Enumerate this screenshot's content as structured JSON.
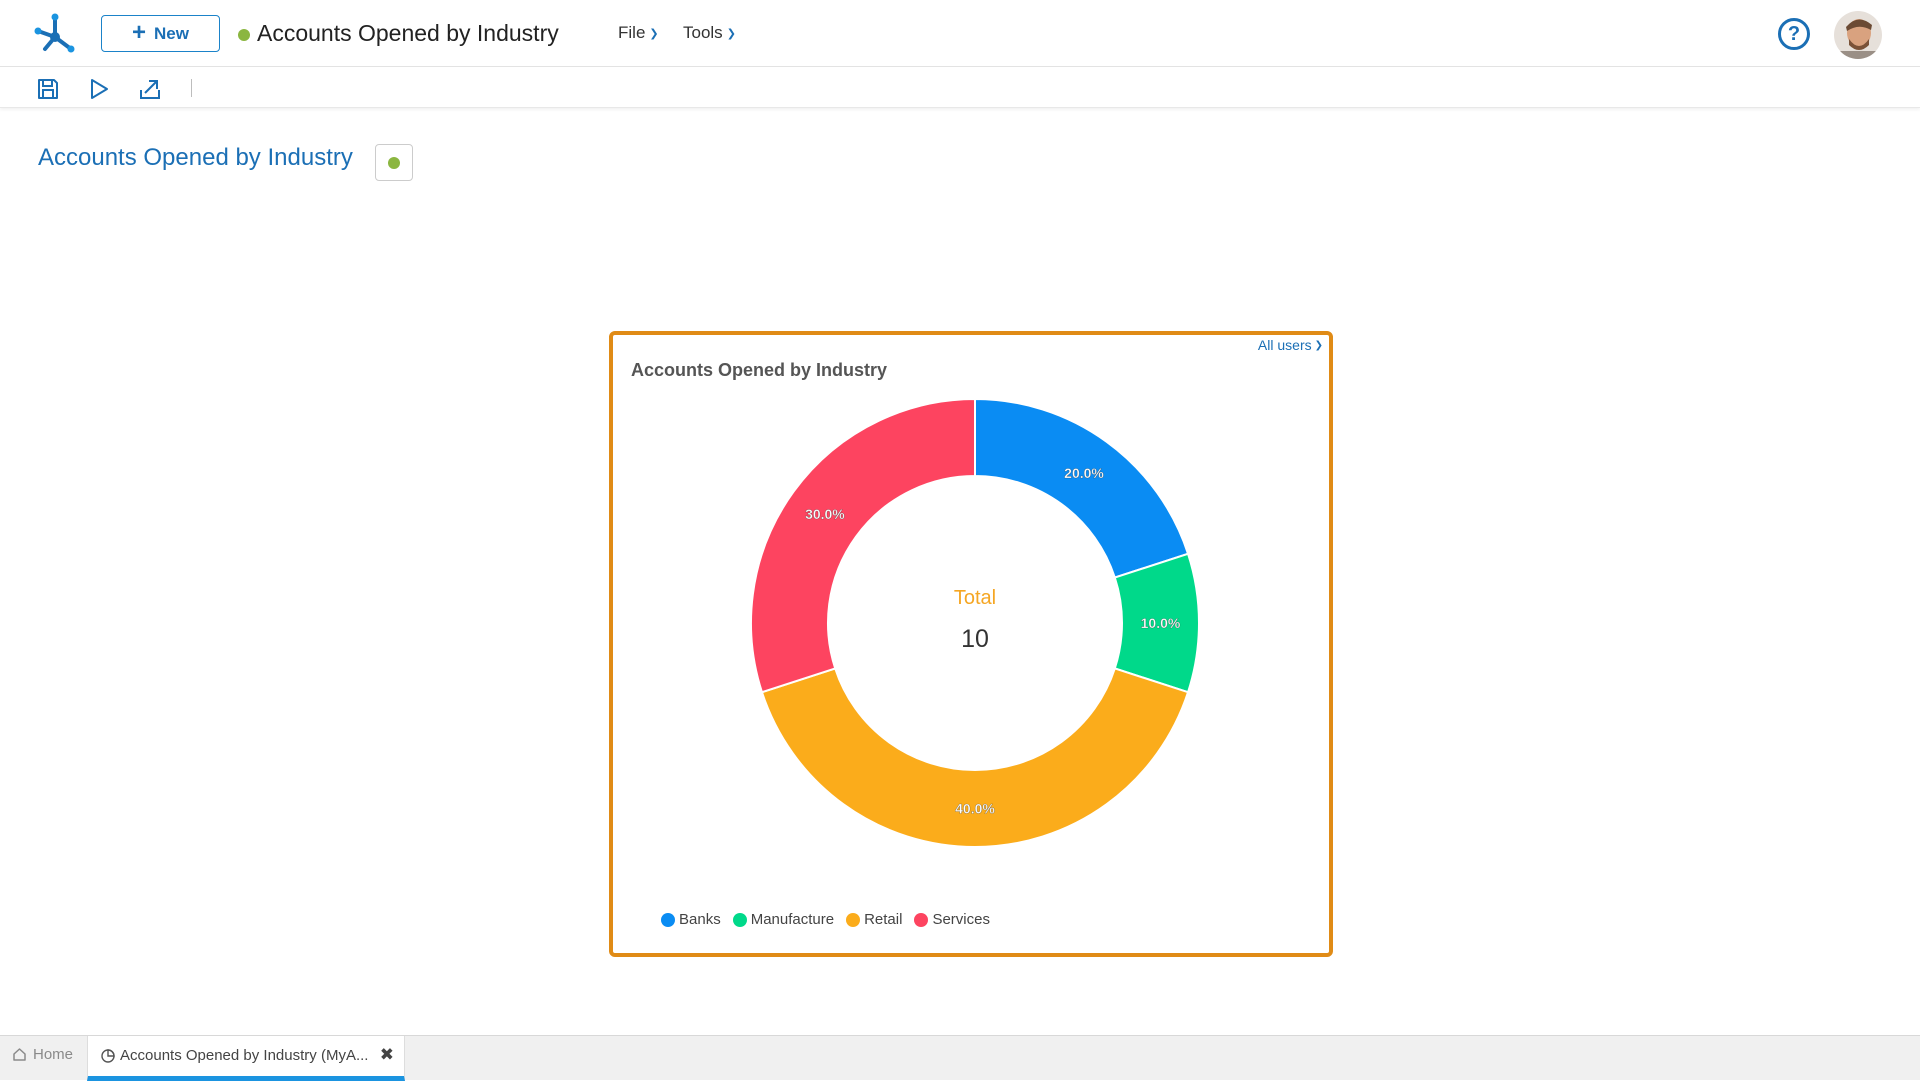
{
  "header": {
    "new_button_label": "New",
    "app_title": "Accounts Opened by Industry",
    "menus": [
      "File",
      "Tools"
    ],
    "help_label": "?"
  },
  "page": {
    "title": "Accounts Opened by Industry"
  },
  "widget": {
    "title": "Accounts Opened by Industry",
    "users_filter": "All users",
    "center_label": "Total",
    "center_value": "10"
  },
  "chart_data": {
    "type": "pie",
    "donut": true,
    "title": "Accounts Opened by Industry",
    "categories": [
      "Banks",
      "Manufacture",
      "Retail",
      "Services"
    ],
    "values": [
      2,
      1,
      4,
      3
    ],
    "percent_labels": [
      "20.0%",
      "10.0%",
      "40.0%",
      "30.0%"
    ],
    "colors": [
      "#0a8cf3",
      "#00d98a",
      "#fbac1b",
      "#fd4460"
    ],
    "legend_position": "bottom-left",
    "total": 10
  },
  "tabs": {
    "home_label": "Home",
    "active_label": "Accounts Opened by Industry (MyA...",
    "close_label": "✖"
  },
  "colors": {
    "accent": "#1b6fb5",
    "status": "#8bb640",
    "widget_border": "#e08b16",
    "active_tab": "#1b94e0"
  }
}
